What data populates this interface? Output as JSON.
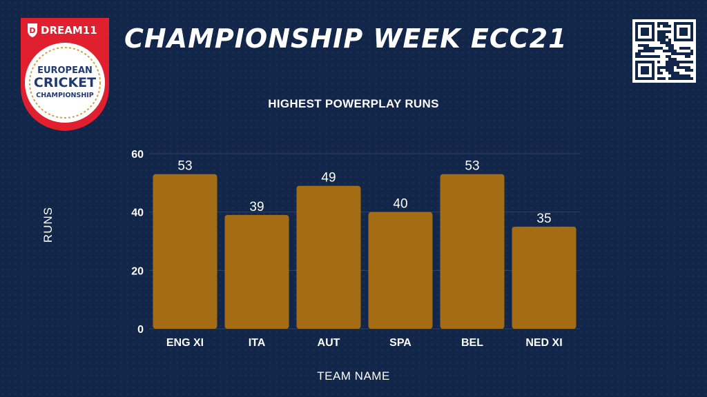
{
  "header": {
    "title": "CHAMPIONSHIP WEEK ECC21",
    "logo": {
      "brand": "DREAM11",
      "line1": "EUROPEAN",
      "line2": "CRICKET",
      "line3": "CHAMPIONSHIP"
    },
    "qr_icon": "qr-code-icon"
  },
  "colors": {
    "background": "#12264a",
    "bar": "#a46d14",
    "text": "#ffffff",
    "logo_red": "#e0202e"
  },
  "chart_data": {
    "type": "bar",
    "title": "HIGHEST POWERPLAY RUNS",
    "xlabel": "TEAM NAME",
    "ylabel": "RUNS",
    "categories": [
      "ENG XI",
      "ITA",
      "AUT",
      "SPA",
      "BEL",
      "NED XI"
    ],
    "values": [
      53,
      39,
      49,
      40,
      53,
      35
    ],
    "ylim": [
      0,
      60
    ],
    "yticks": [
      "0",
      "20",
      "40",
      "60"
    ],
    "grid": true,
    "data_labels": true
  }
}
